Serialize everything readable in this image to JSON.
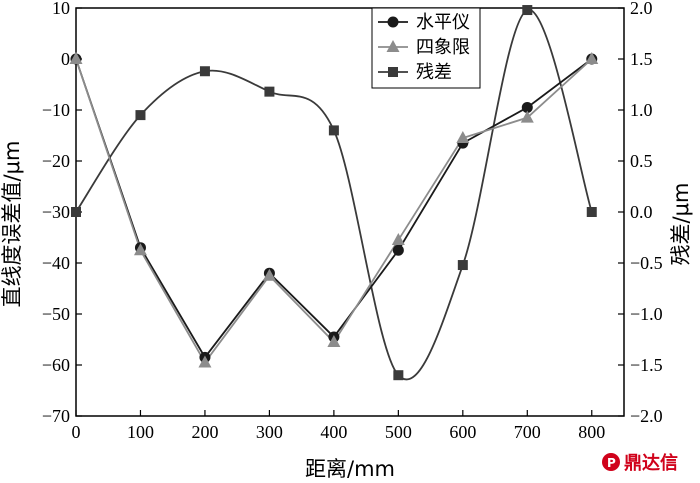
{
  "chart_data": {
    "type": "line",
    "x": [
      0,
      100,
      200,
      300,
      400,
      500,
      600,
      700,
      800
    ],
    "xlabel": "距离/mm",
    "ylabel_left": "直线度误差值/μm",
    "ylabel_right": "残差/μm",
    "xlim": [
      0,
      850
    ],
    "ylim_left": [
      -70,
      10
    ],
    "ylim_right": [
      -2.0,
      2.0
    ],
    "x_ticks": [
      0,
      100,
      200,
      300,
      400,
      500,
      600,
      700,
      800
    ],
    "y_ticks_left": [
      10,
      0,
      -10,
      -20,
      -30,
      -40,
      -50,
      -60,
      -70
    ],
    "y_ticks_right": [
      "2.0",
      "1.5",
      "1.0",
      "0.5",
      "0.0",
      "-0.5",
      "-1.0",
      "-1.5",
      "-2.0"
    ],
    "legend_position": "top-right",
    "grid": false,
    "series": [
      {
        "name": "水平仪",
        "axis": "left",
        "marker": "circle",
        "color": "#1a1a1a",
        "values": [
          0,
          -37,
          -58.5,
          -42,
          -54.5,
          -37.5,
          -16.5,
          -9.5,
          0
        ]
      },
      {
        "name": "四象限",
        "axis": "left",
        "marker": "triangle",
        "color": "#8c8c8c",
        "values": [
          0,
          -37.5,
          -59.5,
          -42.5,
          -55.5,
          -35.5,
          -15.5,
          -11.5,
          0
        ]
      },
      {
        "name": "残差",
        "axis": "right",
        "marker": "square",
        "color": "#3a3a3a",
        "smooth": true,
        "values": [
          0.0,
          0.95,
          1.38,
          1.18,
          0.8,
          -1.6,
          -0.52,
          1.98,
          0.0
        ]
      }
    ]
  },
  "watermark": {
    "text": "鼎达信",
    "color": "#d0021b"
  }
}
